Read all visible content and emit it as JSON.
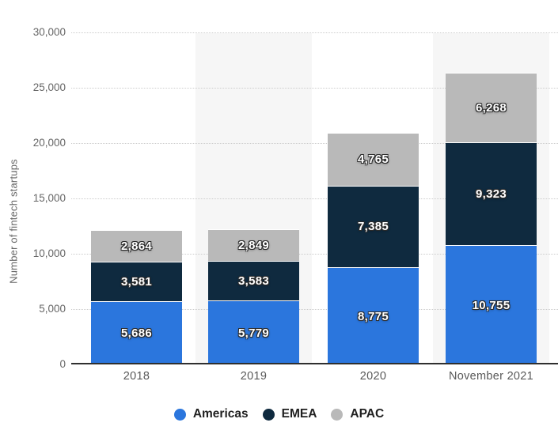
{
  "chart_data": {
    "type": "bar",
    "stacked": true,
    "ylabel": "Number of fintech startups",
    "ylim": [
      0,
      30000
    ],
    "ytick_step": 5000,
    "ytick_labels": [
      "0",
      "5,000",
      "10,000",
      "15,000",
      "20,000",
      "25,000",
      "30,000"
    ],
    "categories": [
      "2018",
      "2019",
      "2020",
      "November 2021"
    ],
    "series": [
      {
        "name": "Americas",
        "color": "#2b76dd",
        "values": [
          5686,
          5779,
          8775,
          10755
        ],
        "labels": [
          "5,686",
          "5,779",
          "8,775",
          "10,755"
        ]
      },
      {
        "name": "EMEA",
        "color": "#0f2a3f",
        "values": [
          3581,
          3583,
          7385,
          9323
        ],
        "labels": [
          "3,581",
          "3,583",
          "7,385",
          "9,323"
        ]
      },
      {
        "name": "APAC",
        "color": "#b9b9b9",
        "values": [
          2864,
          2849,
          4765,
          6268
        ],
        "labels": [
          "2,864",
          "2,849",
          "4,765",
          "6,268"
        ]
      }
    ],
    "legend_position": "bottom",
    "grid": "horizontal-dotted",
    "plot_bands_on_categories": [
      "2019",
      "November 2021"
    ]
  },
  "style_colors": {
    "background": "#ffffff",
    "plot_band": "#f6f6f6",
    "gridline": "#cccccc",
    "axis_line": "#2f2f2f",
    "tick_label": "#666666",
    "x_label": "#595959",
    "y_title": "#666666",
    "legend_text": "#1f1f1f",
    "data_label": "#ffffff",
    "data_label_outline": "#2b2b2b"
  }
}
